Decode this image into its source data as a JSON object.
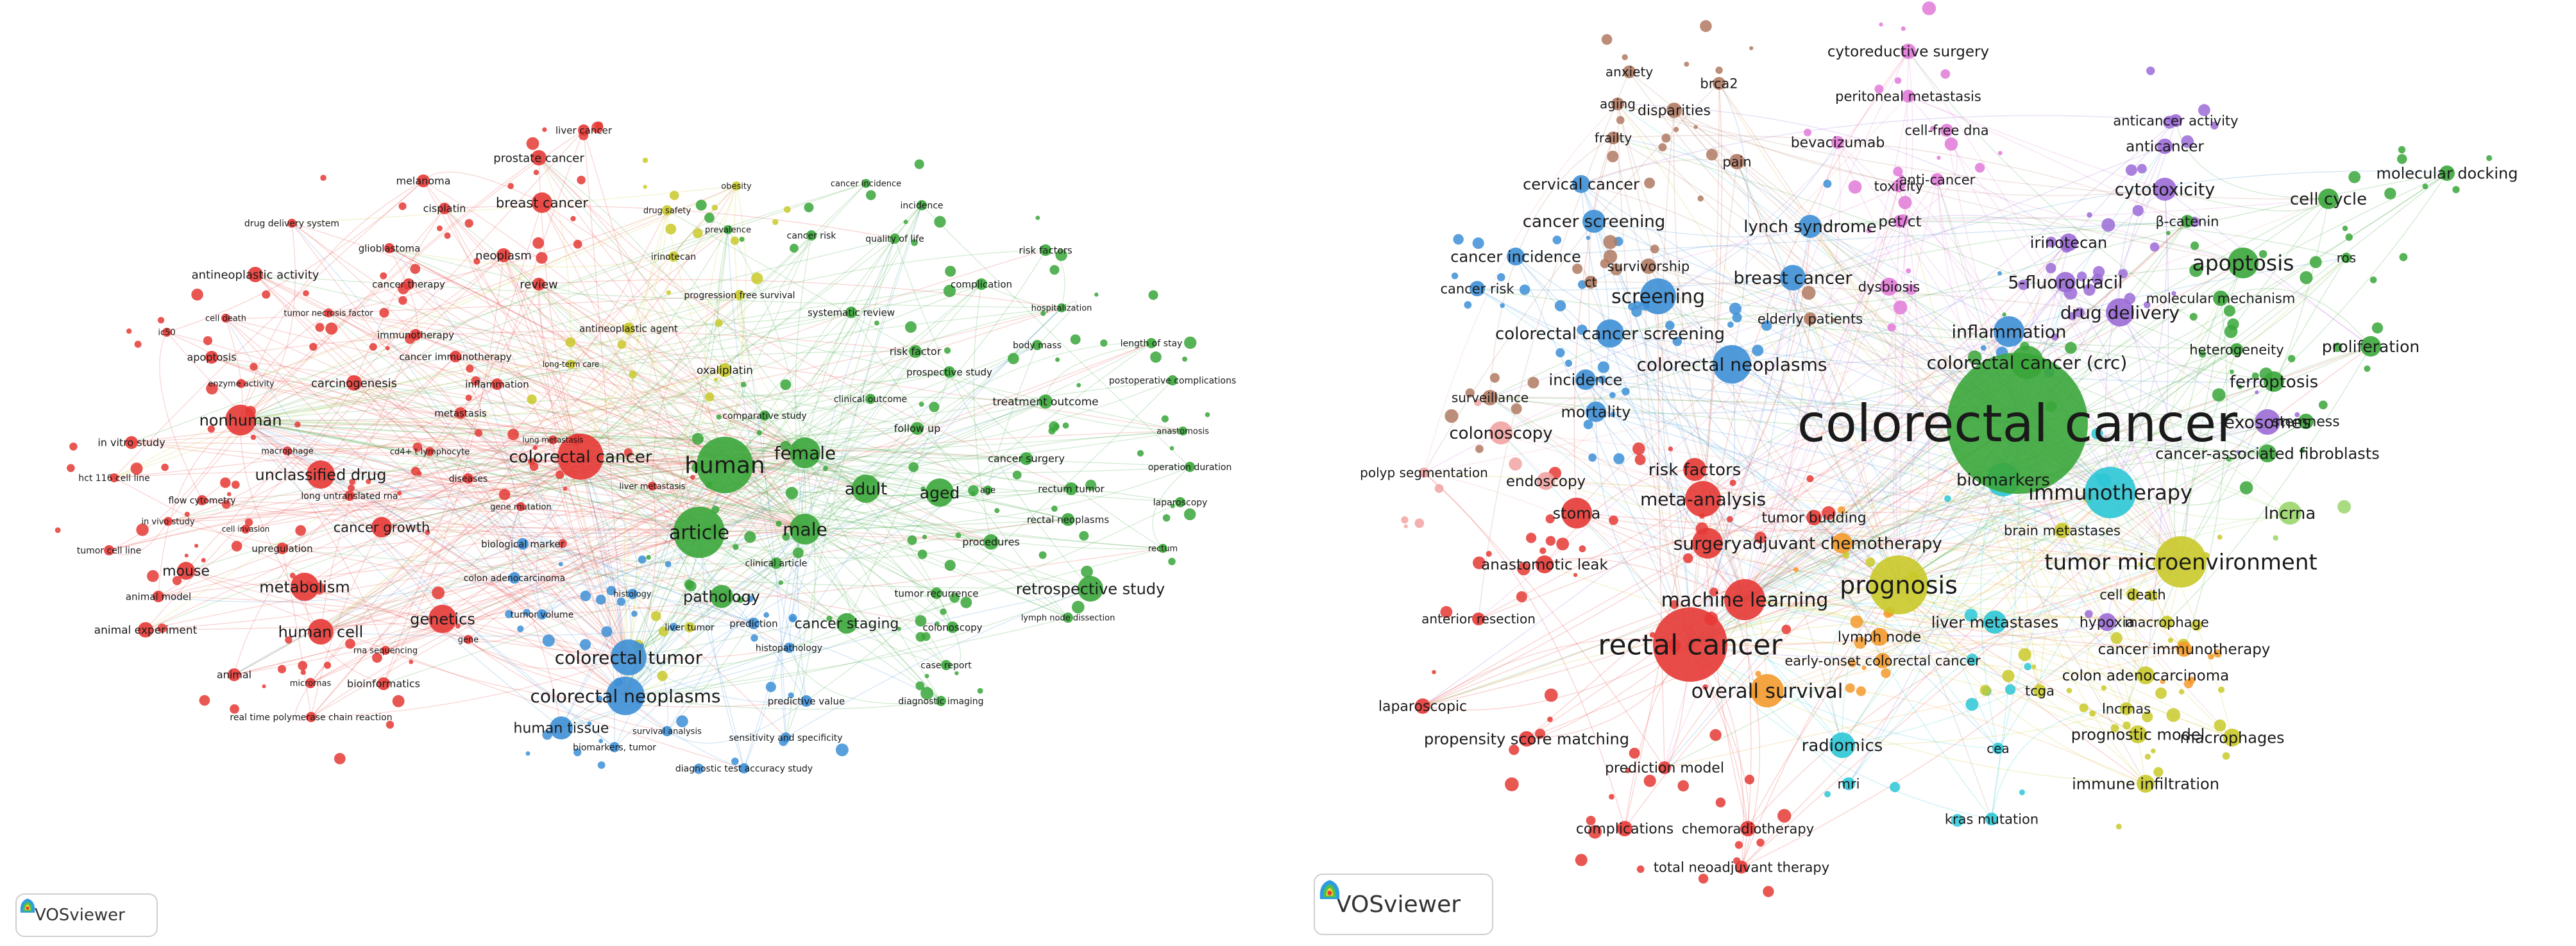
{
  "logos": {
    "left": "VOSviewer",
    "right": "VOSviewer"
  },
  "colors": {
    "red": "#e53935",
    "green": "#3aa63a",
    "blue": "#3d8fd6",
    "yellow": "#c9c92a",
    "purple": "#9b6bd6",
    "cyan": "#2cc7d6",
    "orange": "#f39a2b",
    "brown": "#b07a62",
    "pink": "#e27ad8",
    "lightpink": "#f2a3a3",
    "lightgreen": "#9ad66b"
  },
  "left_network": {
    "nodes": [
      {
        "label": "colorectal cancer",
        "cluster": "red"
      },
      {
        "label": "human",
        "cluster": "green"
      },
      {
        "label": "article",
        "cluster": "green"
      },
      {
        "label": "female",
        "cluster": "green"
      },
      {
        "label": "male",
        "cluster": "green"
      },
      {
        "label": "adult",
        "cluster": "green"
      },
      {
        "label": "aged",
        "cluster": "green"
      },
      {
        "label": "colorectal tumor",
        "cluster": "blue"
      },
      {
        "label": "colorectal neoplasms",
        "cluster": "blue"
      },
      {
        "label": "human tissue",
        "cluster": "blue"
      },
      {
        "label": "pathology",
        "cluster": "green"
      },
      {
        "label": "retrospective study",
        "cluster": "green"
      },
      {
        "label": "cancer staging",
        "cluster": "green"
      },
      {
        "label": "nonhuman",
        "cluster": "red"
      },
      {
        "label": "unclassified drug",
        "cluster": "red"
      },
      {
        "label": "metabolism",
        "cluster": "red"
      },
      {
        "label": "genetics",
        "cluster": "red"
      },
      {
        "label": "human cell",
        "cluster": "red"
      },
      {
        "label": "mouse",
        "cluster": "red"
      },
      {
        "label": "cancer growth",
        "cluster": "red"
      },
      {
        "label": "breast cancer",
        "cluster": "red"
      },
      {
        "label": "prostate cancer",
        "cluster": "red"
      },
      {
        "label": "liver cancer",
        "cluster": "red"
      },
      {
        "label": "melanoma",
        "cluster": "red"
      },
      {
        "label": "cisplatin",
        "cluster": "red"
      },
      {
        "label": "neoplasm",
        "cluster": "red"
      },
      {
        "label": "review",
        "cluster": "red"
      },
      {
        "label": "drug delivery system",
        "cluster": "red"
      },
      {
        "label": "glioblastoma",
        "cluster": "red"
      },
      {
        "label": "antineoplastic activity",
        "cluster": "red"
      },
      {
        "label": "cancer therapy",
        "cluster": "red"
      },
      {
        "label": "cell death",
        "cluster": "red"
      },
      {
        "label": "tumor necrosis factor",
        "cluster": "red"
      },
      {
        "label": "ic50",
        "cluster": "red"
      },
      {
        "label": "immunotherapy",
        "cluster": "red"
      },
      {
        "label": "apoptosis",
        "cluster": "red"
      },
      {
        "label": "cancer immunotherapy",
        "cluster": "red"
      },
      {
        "label": "enzyme activity",
        "cluster": "red"
      },
      {
        "label": "carcinogenesis",
        "cluster": "red"
      },
      {
        "label": "inflammation",
        "cluster": "red"
      },
      {
        "label": "metastasis",
        "cluster": "red"
      },
      {
        "label": "in vitro study",
        "cluster": "red"
      },
      {
        "label": "macrophage",
        "cluster": "red"
      },
      {
        "label": "cd4+ t lymphocyte",
        "cluster": "red"
      },
      {
        "label": "hct 116 cell line",
        "cluster": "red"
      },
      {
        "label": "long untranslated rna",
        "cluster": "red"
      },
      {
        "label": "diseases",
        "cluster": "red"
      },
      {
        "label": "flow cytometry",
        "cluster": "red"
      },
      {
        "label": "in vivo study",
        "cluster": "red"
      },
      {
        "label": "cell invasion",
        "cluster": "red"
      },
      {
        "label": "tumor cell line",
        "cluster": "red"
      },
      {
        "label": "upregulation",
        "cluster": "red"
      },
      {
        "label": "animal model",
        "cluster": "red"
      },
      {
        "label": "animal experiment",
        "cluster": "red"
      },
      {
        "label": "animal",
        "cluster": "red"
      },
      {
        "label": "micrornas",
        "cluster": "red"
      },
      {
        "label": "bioinformatics",
        "cluster": "red"
      },
      {
        "label": "rna sequencing",
        "cluster": "red"
      },
      {
        "label": "gene",
        "cluster": "red"
      },
      {
        "label": "real time polymerase chain reaction",
        "cluster": "red"
      },
      {
        "label": "lung metastasis",
        "cluster": "red"
      },
      {
        "label": "liver metastasis",
        "cluster": "red"
      },
      {
        "label": "gene mutation",
        "cluster": "red"
      },
      {
        "label": "biological marker",
        "cluster": "blue"
      },
      {
        "label": "colon adenocarcinoma",
        "cluster": "blue"
      },
      {
        "label": "histology",
        "cluster": "blue"
      },
      {
        "label": "tumor volume",
        "cluster": "blue"
      },
      {
        "label": "liver tumor",
        "cluster": "yellow"
      },
      {
        "label": "prediction",
        "cluster": "blue"
      },
      {
        "label": "histopathology",
        "cluster": "blue"
      },
      {
        "label": "predictive value",
        "cluster": "blue"
      },
      {
        "label": "survival analysis",
        "cluster": "blue"
      },
      {
        "label": "sensitivity and specificity",
        "cluster": "blue"
      },
      {
        "label": "biomarkers, tumor",
        "cluster": "blue"
      },
      {
        "label": "diagnostic test accuracy study",
        "cluster": "blue"
      },
      {
        "label": "diagnostic imaging",
        "cluster": "green"
      },
      {
        "label": "case report",
        "cluster": "green"
      },
      {
        "label": "colonoscopy",
        "cluster": "green"
      },
      {
        "label": "lymph node dissection",
        "cluster": "green"
      },
      {
        "label": "tumor recurrence",
        "cluster": "green"
      },
      {
        "label": "clinical article",
        "cluster": "green"
      },
      {
        "label": "procedures",
        "cluster": "green"
      },
      {
        "label": "rectal neoplasms",
        "cluster": "green"
      },
      {
        "label": "rectum tumor",
        "cluster": "green"
      },
      {
        "label": "age",
        "cluster": "green"
      },
      {
        "label": "cancer surgery",
        "cluster": "green"
      },
      {
        "label": "follow up",
        "cluster": "green"
      },
      {
        "label": "treatment outcome",
        "cluster": "green"
      },
      {
        "label": "clinical outcome",
        "cluster": "green"
      },
      {
        "label": "comparative study",
        "cluster": "green"
      },
      {
        "label": "prospective study",
        "cluster": "green"
      },
      {
        "label": "risk factor",
        "cluster": "green"
      },
      {
        "label": "systematic review",
        "cluster": "green"
      },
      {
        "label": "hospitalization",
        "cluster": "green"
      },
      {
        "label": "body mass",
        "cluster": "green"
      },
      {
        "label": "length of stay",
        "cluster": "green"
      },
      {
        "label": "postoperative complications",
        "cluster": "green"
      },
      {
        "label": "anastomosis",
        "cluster": "green"
      },
      {
        "label": "operation duration",
        "cluster": "green"
      },
      {
        "label": "laparoscopy",
        "cluster": "green"
      },
      {
        "label": "rectum",
        "cluster": "green"
      },
      {
        "label": "complication",
        "cluster": "green"
      },
      {
        "label": "risk factors",
        "cluster": "green"
      },
      {
        "label": "cancer risk",
        "cluster": "green"
      },
      {
        "label": "quality of life",
        "cluster": "green"
      },
      {
        "label": "incidence",
        "cluster": "green"
      },
      {
        "label": "cancer incidence",
        "cluster": "green"
      },
      {
        "label": "obesity",
        "cluster": "yellow"
      },
      {
        "label": "prevalence",
        "cluster": "green"
      },
      {
        "label": "drug safety",
        "cluster": "yellow"
      },
      {
        "label": "irinotecan",
        "cluster": "yellow"
      },
      {
        "label": "progression free survival",
        "cluster": "yellow"
      },
      {
        "label": "antineoplastic agent",
        "cluster": "yellow"
      },
      {
        "label": "long-term care",
        "cluster": "yellow"
      },
      {
        "label": "oxaliplatin",
        "cluster": "yellow"
      }
    ]
  },
  "right_network": {
    "nodes": [
      {
        "label": "colorectal cancer",
        "cluster": "green"
      },
      {
        "label": "rectal cancer",
        "cluster": "red"
      },
      {
        "label": "prognosis",
        "cluster": "yellow"
      },
      {
        "label": "tumor microenvironment",
        "cluster": "yellow"
      },
      {
        "label": "immunotherapy",
        "cluster": "cyan"
      },
      {
        "label": "biomarkers",
        "cluster": "cyan"
      },
      {
        "label": "inflammation",
        "cluster": "blue"
      },
      {
        "label": "colorectal cancer (crc)",
        "cluster": "green"
      },
      {
        "label": "colorectal neoplasms",
        "cluster": "blue"
      },
      {
        "label": "screening",
        "cluster": "blue"
      },
      {
        "label": "colorectal cancer screening",
        "cluster": "blue"
      },
      {
        "label": "breast cancer",
        "cluster": "blue"
      },
      {
        "label": "lynch syndrome",
        "cluster": "blue"
      },
      {
        "label": "cancer screening",
        "cluster": "blue"
      },
      {
        "label": "cervical cancer",
        "cluster": "blue"
      },
      {
        "label": "cancer incidence",
        "cluster": "blue"
      },
      {
        "label": "cancer risk",
        "cluster": "blue"
      },
      {
        "label": "ct",
        "cluster": "brown"
      },
      {
        "label": "survivorship",
        "cluster": "brown"
      },
      {
        "label": "incidence",
        "cluster": "blue"
      },
      {
        "label": "mortality",
        "cluster": "blue"
      },
      {
        "label": "surveillance",
        "cluster": "brown"
      },
      {
        "label": "colonoscopy",
        "cluster": "lightpink"
      },
      {
        "label": "polyp segmentation",
        "cluster": "lightpink"
      },
      {
        "label": "endoscopy",
        "cluster": "lightpink"
      },
      {
        "label": "risk factors",
        "cluster": "red"
      },
      {
        "label": "meta-analysis",
        "cluster": "red"
      },
      {
        "label": "stoma",
        "cluster": "red"
      },
      {
        "label": "surgery",
        "cluster": "red"
      },
      {
        "label": "anastomotic leak",
        "cluster": "red"
      },
      {
        "label": "machine learning",
        "cluster": "red"
      },
      {
        "label": "anterior resection",
        "cluster": "red"
      },
      {
        "label": "overall survival",
        "cluster": "orange"
      },
      {
        "label": "laparoscopic",
        "cluster": "red"
      },
      {
        "label": "propensity score matching",
        "cluster": "red"
      },
      {
        "label": "prediction model",
        "cluster": "red"
      },
      {
        "label": "complications",
        "cluster": "red"
      },
      {
        "label": "chemoradiotherapy",
        "cluster": "red"
      },
      {
        "label": "total neoadjuvant therapy",
        "cluster": "red"
      },
      {
        "label": "radiomics",
        "cluster": "cyan"
      },
      {
        "label": "mri",
        "cluster": "cyan"
      },
      {
        "label": "cea",
        "cluster": "cyan"
      },
      {
        "label": "kras mutation",
        "cluster": "cyan"
      },
      {
        "label": "tumor budding",
        "cluster": "red"
      },
      {
        "label": "adjuvant chemotherapy",
        "cluster": "orange"
      },
      {
        "label": "lymph node",
        "cluster": "orange"
      },
      {
        "label": "early-onset colorectal cancer",
        "cluster": "orange"
      },
      {
        "label": "liver metastases",
        "cluster": "cyan"
      },
      {
        "label": "brain metastases",
        "cluster": "yellow"
      },
      {
        "label": "cell death",
        "cluster": "yellow"
      },
      {
        "label": "hypoxia",
        "cluster": "purple"
      },
      {
        "label": "macrophage",
        "cluster": "yellow"
      },
      {
        "label": "cancer immunotherapy",
        "cluster": "orange"
      },
      {
        "label": "colon adenocarcinoma",
        "cluster": "yellow"
      },
      {
        "label": "tcga",
        "cluster": "yellow"
      },
      {
        "label": "lncrnas",
        "cluster": "yellow"
      },
      {
        "label": "prognostic model",
        "cluster": "yellow"
      },
      {
        "label": "macrophages",
        "cluster": "yellow"
      },
      {
        "label": "immune infiltration",
        "cluster": "yellow"
      },
      {
        "label": "lncrna",
        "cluster": "lightgreen"
      },
      {
        "label": "cancer-associated fibroblasts",
        "cluster": "green"
      },
      {
        "label": "stemness",
        "cluster": "green"
      },
      {
        "label": "exosomes",
        "cluster": "purple"
      },
      {
        "label": "ferroptosis",
        "cluster": "green"
      },
      {
        "label": "heterogeneity",
        "cluster": "green"
      },
      {
        "label": "proliferation",
        "cluster": "green"
      },
      {
        "label": "molecular mechanism",
        "cluster": "green"
      },
      {
        "label": "apoptosis",
        "cluster": "green"
      },
      {
        "label": "ros",
        "cluster": "green"
      },
      {
        "label": "cell cycle",
        "cluster": "green"
      },
      {
        "label": "β-catenin",
        "cluster": "green"
      },
      {
        "label": "molecular docking",
        "cluster": "green"
      },
      {
        "label": "cytotoxicity",
        "cluster": "purple"
      },
      {
        "label": "anticancer",
        "cluster": "purple"
      },
      {
        "label": "anticancer activity",
        "cluster": "purple"
      },
      {
        "label": "drug delivery",
        "cluster": "purple"
      },
      {
        "label": "5-fluorouracil",
        "cluster": "purple"
      },
      {
        "label": "irinotecan",
        "cluster": "purple"
      },
      {
        "label": "anti-cancer",
        "cluster": "pink"
      },
      {
        "label": "toxicity",
        "cluster": "pink"
      },
      {
        "label": "pet/ct",
        "cluster": "pink"
      },
      {
        "label": "dysbiosis",
        "cluster": "pink"
      },
      {
        "label": "elderly patients",
        "cluster": "brown"
      },
      {
        "label": "bevacizumab",
        "cluster": "pink"
      },
      {
        "label": "cell-free dna",
        "cluster": "pink"
      },
      {
        "label": "peritoneal metastasis",
        "cluster": "pink"
      },
      {
        "label": "cytoreductive surgery",
        "cluster": "pink"
      },
      {
        "label": "brca2",
        "cluster": "brown"
      },
      {
        "label": "anxiety",
        "cluster": "brown"
      },
      {
        "label": "aging",
        "cluster": "brown"
      },
      {
        "label": "disparities",
        "cluster": "brown"
      },
      {
        "label": "frailty",
        "cluster": "brown"
      },
      {
        "label": "pain",
        "cluster": "brown"
      }
    ]
  }
}
